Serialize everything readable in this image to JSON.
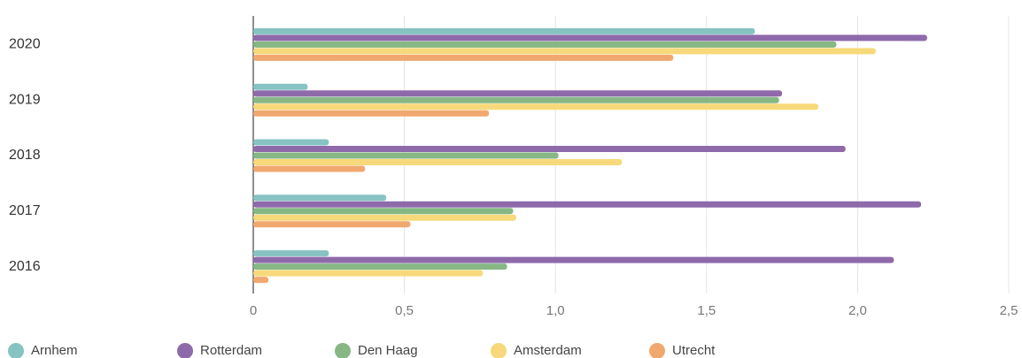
{
  "chart_data": {
    "type": "bar",
    "orientation": "horizontal",
    "categories": [
      "2020",
      "2019",
      "2018",
      "2017",
      "2016"
    ],
    "series": [
      {
        "name": "Arnhem",
        "color": "#87c3c3",
        "values": [
          1.66,
          0.18,
          0.25,
          0.44,
          0.25
        ]
      },
      {
        "name": "Rotterdam",
        "color": "#8e6aab",
        "values": [
          2.23,
          1.75,
          1.96,
          2.21,
          2.12
        ]
      },
      {
        "name": "Den Haag",
        "color": "#86b784",
        "values": [
          1.93,
          1.74,
          1.01,
          0.86,
          0.84
        ]
      },
      {
        "name": "Amsterdam",
        "color": "#f7d97b",
        "values": [
          2.06,
          1.87,
          1.22,
          0.87,
          0.76
        ]
      },
      {
        "name": "Utrecht",
        "color": "#f1a86f",
        "values": [
          1.39,
          0.78,
          0.37,
          0.52,
          0.05
        ]
      }
    ],
    "xlim": [
      0,
      2.5
    ],
    "xticks": [
      0,
      {
        "value": 0.5,
        "label": "0,5"
      },
      {
        "value": 1,
        "label": "1,0"
      },
      {
        "value": 1.5,
        "label": "1,5"
      },
      {
        "value": 2,
        "label": "2,0"
      },
      {
        "value": 2.5,
        "label": "2,5"
      }
    ],
    "grid": true,
    "legend": "bottom"
  }
}
